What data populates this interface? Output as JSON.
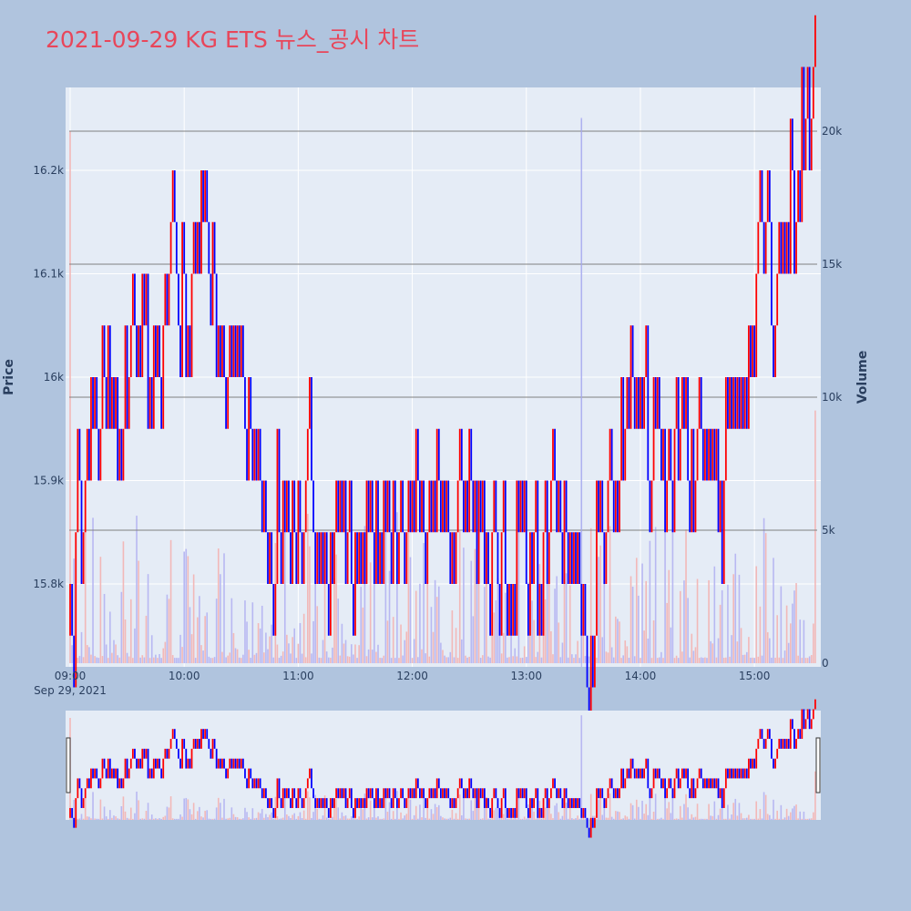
{
  "title": "2021-09-29 KG ETS 뉴스_공시 차트",
  "colors": {
    "background": "#b0c4de",
    "plot_bg": "#e5ecf6",
    "grid": "#ffffff",
    "up": "#ff0000",
    "down": "#0000ff",
    "title": "#e8465a",
    "hline": "#808080",
    "volume_up": "#f2b8b8",
    "volume_down": "#b8b8f2"
  },
  "chart_data": {
    "type": "candlestick+bar",
    "xlabel": "",
    "ylabel": "Price",
    "y2label": "Volume",
    "date_label": "Sep 29, 2021",
    "x_tick_labels": [
      "09:00",
      "10:00",
      "11:00",
      "12:00",
      "13:00",
      "14:00",
      "15:00"
    ],
    "x_range_minutes": [
      0,
      393
    ],
    "price_range": [
      15740,
      16270
    ],
    "price_tick_values": [
      15800,
      15900,
      16000,
      16100,
      16200
    ],
    "price_tick_labels": [
      "15.8k",
      "15.9k",
      "16k",
      "16.1k",
      "16.2k"
    ],
    "volume_range": [
      0,
      20500
    ],
    "volume_tick_values": [
      0,
      5000,
      10000,
      15000,
      20000
    ],
    "volume_tick_labels": [
      "0",
      "5k",
      "10k",
      "15k",
      "20k"
    ],
    "horizontal_lines_volume": [
      5000,
      10000,
      15000,
      20000
    ],
    "vertical_line_minute": 269,
    "price_path": [
      {
        "t": 0,
        "p": 15750
      },
      {
        "t": 2,
        "p": 15900
      },
      {
        "t": 5,
        "p": 15850
      },
      {
        "t": 8,
        "p": 15950
      },
      {
        "t": 12,
        "p": 16000
      },
      {
        "t": 16,
        "p": 16050
      },
      {
        "t": 20,
        "p": 15950
      },
      {
        "t": 24,
        "p": 15900
      },
      {
        "t": 28,
        "p": 16000
      },
      {
        "t": 32,
        "p": 16050
      },
      {
        "t": 36,
        "p": 16050
      },
      {
        "t": 40,
        "p": 16000
      },
      {
        "t": 44,
        "p": 16050
      },
      {
        "t": 48,
        "p": 16100
      },
      {
        "t": 52,
        "p": 16150
      },
      {
        "t": 56,
        "p": 16100
      },
      {
        "t": 60,
        "p": 16050
      },
      {
        "t": 64,
        "p": 16100
      },
      {
        "t": 68,
        "p": 16150
      },
      {
        "t": 72,
        "p": 16100
      },
      {
        "t": 76,
        "p": 16050
      },
      {
        "t": 80,
        "p": 16000
      },
      {
        "t": 84,
        "p": 16050
      },
      {
        "t": 88,
        "p": 16000
      },
      {
        "t": 92,
        "p": 15950
      },
      {
        "t": 96,
        "p": 15900
      },
      {
        "t": 100,
        "p": 15850
      },
      {
        "t": 104,
        "p": 15800
      },
      {
        "t": 108,
        "p": 15900
      },
      {
        "t": 112,
        "p": 15850
      },
      {
        "t": 116,
        "p": 15900
      },
      {
        "t": 120,
        "p": 15850
      },
      {
        "t": 124,
        "p": 15900
      },
      {
        "t": 128,
        "p": 15850
      },
      {
        "t": 132,
        "p": 15800
      },
      {
        "t": 136,
        "p": 15850
      },
      {
        "t": 140,
        "p": 15900
      },
      {
        "t": 144,
        "p": 15850
      },
      {
        "t": 150,
        "p": 15850
      },
      {
        "t": 156,
        "p": 15850
      },
      {
        "t": 162,
        "p": 15850
      },
      {
        "t": 168,
        "p": 15850
      },
      {
        "t": 174,
        "p": 15850
      },
      {
        "t": 180,
        "p": 15900
      },
      {
        "t": 186,
        "p": 15850
      },
      {
        "t": 192,
        "p": 15900
      },
      {
        "t": 198,
        "p": 15850
      },
      {
        "t": 204,
        "p": 15900
      },
      {
        "t": 210,
        "p": 15850
      },
      {
        "t": 216,
        "p": 15800
      },
      {
        "t": 222,
        "p": 15850
      },
      {
        "t": 228,
        "p": 15800
      },
      {
        "t": 234,
        "p": 15850
      },
      {
        "t": 240,
        "p": 15800
      },
      {
        "t": 246,
        "p": 15850
      },
      {
        "t": 252,
        "p": 15900
      },
      {
        "t": 258,
        "p": 15850
      },
      {
        "t": 264,
        "p": 15800
      },
      {
        "t": 270,
        "p": 15750
      },
      {
        "t": 276,
        "p": 15850
      },
      {
        "t": 282,
        "p": 15900
      },
      {
        "t": 288,
        "p": 15950
      },
      {
        "t": 294,
        "p": 16000
      },
      {
        "t": 300,
        "p": 15950
      },
      {
        "t": 306,
        "p": 15950
      },
      {
        "t": 312,
        "p": 15900
      },
      {
        "t": 318,
        "p": 15950
      },
      {
        "t": 324,
        "p": 15900
      },
      {
        "t": 330,
        "p": 15950
      },
      {
        "t": 336,
        "p": 15900
      },
      {
        "t": 340,
        "p": 15850
      },
      {
        "t": 344,
        "p": 15950
      },
      {
        "t": 348,
        "p": 16000
      },
      {
        "t": 352,
        "p": 15950
      },
      {
        "t": 356,
        "p": 16050
      },
      {
        "t": 360,
        "p": 16100
      },
      {
        "t": 364,
        "p": 16150
      },
      {
        "t": 368,
        "p": 16050
      },
      {
        "t": 372,
        "p": 16100
      },
      {
        "t": 376,
        "p": 16200
      },
      {
        "t": 380,
        "p": 16150
      },
      {
        "t": 384,
        "p": 16250
      },
      {
        "t": 386,
        "p": 16250
      }
    ]
  }
}
